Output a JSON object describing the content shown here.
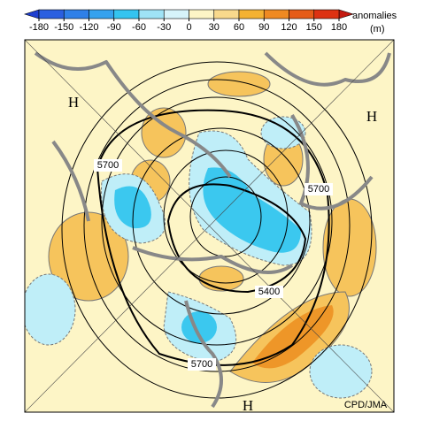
{
  "colorbar": {
    "ticks": [
      -180,
      -150,
      -120,
      -90,
      -60,
      -30,
      0,
      30,
      60,
      90,
      120,
      150,
      180
    ],
    "colors": [
      "#1e3fd0",
      "#2a5fe0",
      "#2f80e8",
      "#35a2ee",
      "#34c4f0",
      "#9fe3f6",
      "#d6f3fa",
      "#fdf5c6",
      "#f8d98c",
      "#f4b232",
      "#ef8a22",
      "#e65c18",
      "#dd3212",
      "#c41a10"
    ],
    "label": "anomalies",
    "unit": "(m)"
  },
  "map": {
    "highs": [
      "H",
      "H",
      "H"
    ],
    "contour_labels": [
      "5700",
      "5700",
      "5700",
      "5400"
    ],
    "credit": "CPD/JMA"
  }
}
